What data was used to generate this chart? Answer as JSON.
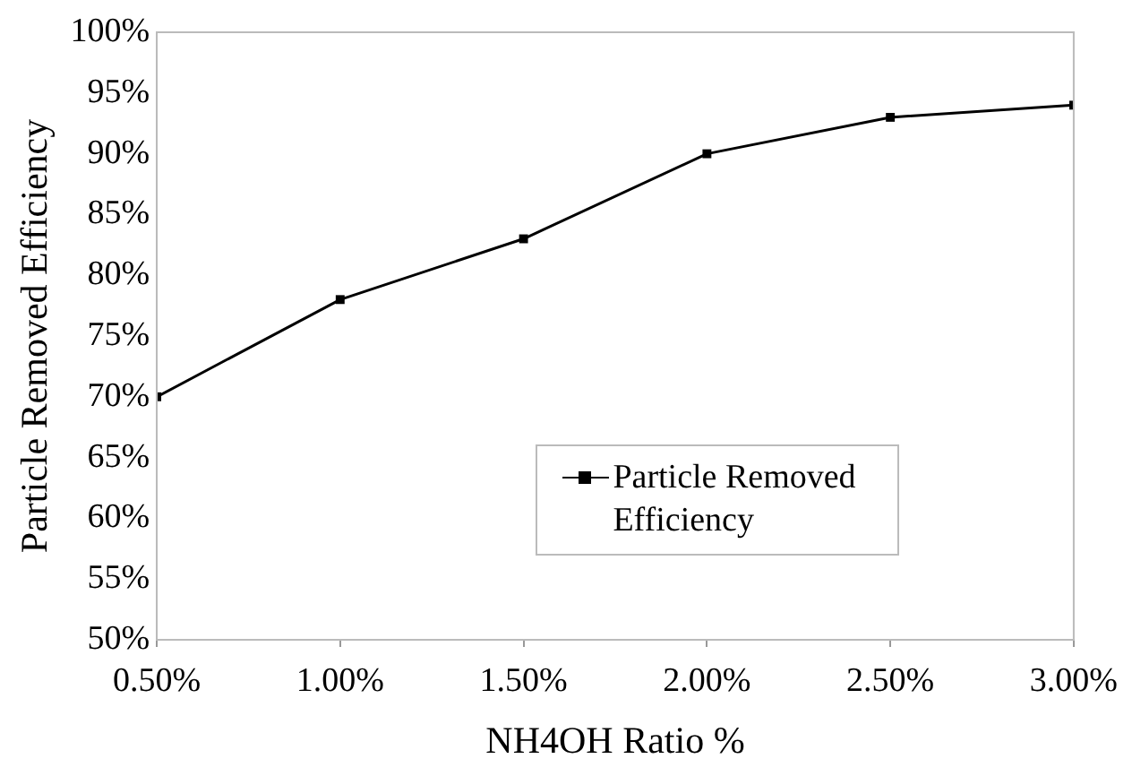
{
  "chart_data": {
    "type": "line",
    "xlabel": "NH4OH Ratio %",
    "ylabel": "Particle Removed Efficiency",
    "x": [
      0.5,
      1.0,
      1.5,
      2.0,
      2.5,
      3.0
    ],
    "series": [
      {
        "name": "Particle Removed Efficiency",
        "color": "#000000",
        "values": [
          70,
          78,
          83,
          90,
          93,
          94
        ]
      }
    ],
    "xlim": [
      0.5,
      3.0
    ],
    "xticks": [
      {
        "value": 0.5,
        "label": "0.50%"
      },
      {
        "value": 1.0,
        "label": "1.00%"
      },
      {
        "value": 1.5,
        "label": "1.50%"
      },
      {
        "value": 2.0,
        "label": "2.00%"
      },
      {
        "value": 2.5,
        "label": "2.50%"
      },
      {
        "value": 3.0,
        "label": "3.00%"
      }
    ],
    "ylim": [
      50,
      100
    ],
    "yticks": [
      {
        "value": 50,
        "label": "50%"
      },
      {
        "value": 55,
        "label": "55%"
      },
      {
        "value": 60,
        "label": "60%"
      },
      {
        "value": 65,
        "label": "65%"
      },
      {
        "value": 70,
        "label": "70%"
      },
      {
        "value": 75,
        "label": "75%"
      },
      {
        "value": 80,
        "label": "80%"
      },
      {
        "value": 85,
        "label": "85%"
      },
      {
        "value": 90,
        "label": "90%"
      },
      {
        "value": 95,
        "label": "95%"
      },
      {
        "value": 100,
        "label": "100%"
      }
    ],
    "marker": "square",
    "line_style": "solid",
    "legend": "bottom right",
    "grid": false
  }
}
